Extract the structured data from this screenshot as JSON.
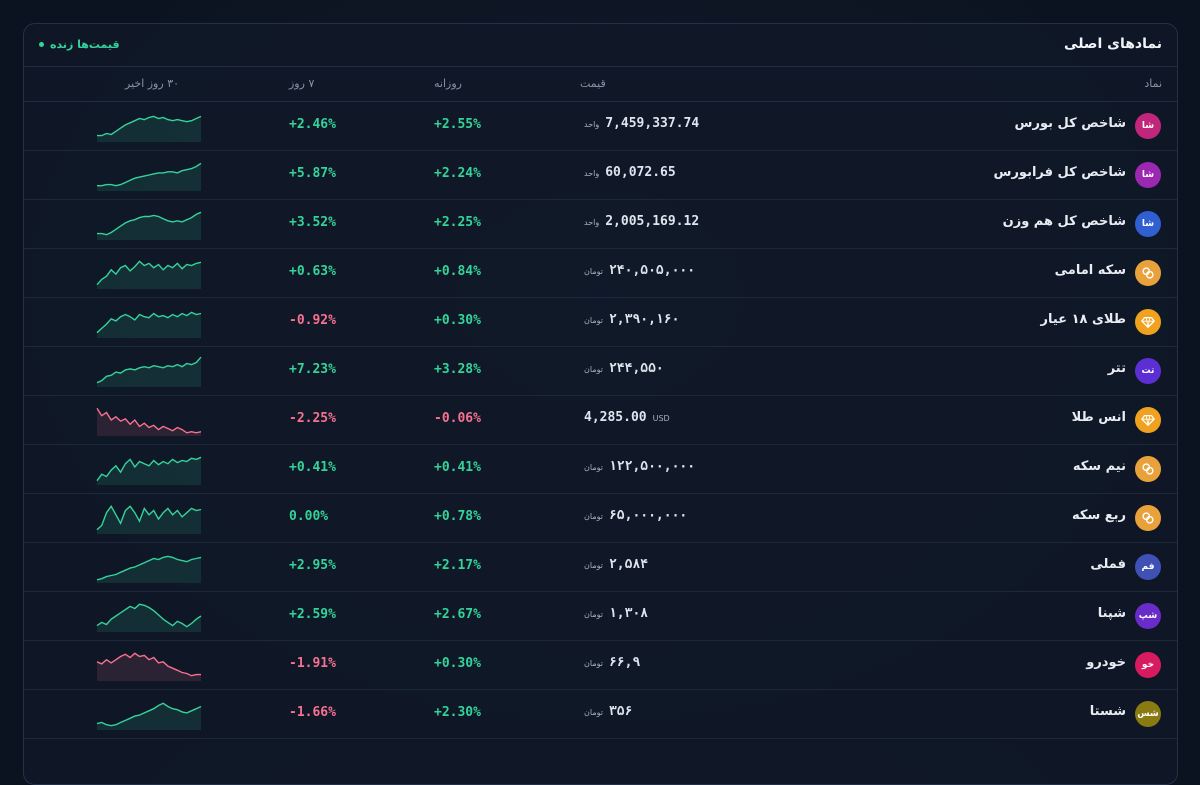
{
  "panel": {
    "title": "نمادهای اصلی",
    "live_label": "قیمت‌ها زنده"
  },
  "columns": {
    "symbol": "نماد",
    "price": "قیمت",
    "daily": "روزانه",
    "weekly": "۷ روز",
    "spark": "۳۰ روز اخیر"
  },
  "colors": {
    "positive": "#34d399",
    "negative": "#f87191"
  },
  "rows": [
    {
      "avatar": "شا",
      "avatar_color": "#c0267a",
      "icon": "text",
      "name": "شاخص کل بورس",
      "price": "7,459,337.74",
      "unit": "واحد",
      "daily": "+2.55%",
      "daily_sign": "pos",
      "weekly": "+2.46%",
      "weekly_sign": "pos",
      "spark": [
        6,
        6,
        8,
        7,
        10,
        13,
        16,
        18,
        20,
        22,
        21,
        23,
        24,
        22,
        23,
        21,
        20,
        21,
        20,
        19,
        20,
        22,
        24
      ],
      "spark_trend": "pos"
    },
    {
      "avatar": "شا",
      "avatar_color": "#9c27b0",
      "icon": "text",
      "name": "شاخص کل فرابورس",
      "price": "60,072.65",
      "unit": "واحد",
      "daily": "+2.24%",
      "daily_sign": "pos",
      "weekly": "+5.87%",
      "weekly_sign": "pos",
      "spark": [
        5,
        5,
        6,
        6,
        5,
        6,
        8,
        10,
        12,
        13,
        14,
        15,
        16,
        17,
        17,
        18,
        18,
        17,
        19,
        20,
        21,
        23,
        26
      ],
      "spark_trend": "pos"
    },
    {
      "avatar": "شا",
      "avatar_color": "#2f5fd0",
      "icon": "text",
      "name": "شاخص کل هم وزن",
      "price": "2,005,169.12",
      "unit": "واحد",
      "daily": "+2.25%",
      "daily_sign": "pos",
      "weekly": "+3.52%",
      "weekly_sign": "pos",
      "spark": [
        6,
        6,
        5,
        7,
        10,
        13,
        16,
        18,
        19,
        21,
        22,
        22,
        23,
        22,
        20,
        18,
        17,
        18,
        17,
        19,
        21,
        24,
        26
      ],
      "spark_trend": "pos"
    },
    {
      "avatar": "",
      "avatar_color": "#e9a23b",
      "icon": "coin",
      "name": "سکه امامی",
      "price": "۲۴۰,۵۰۵,۰۰۰",
      "unit": "تومان",
      "daily": "+0.84%",
      "daily_sign": "pos",
      "weekly": "+0.63%",
      "weekly_sign": "pos",
      "spark": [
        4,
        9,
        12,
        18,
        14,
        20,
        22,
        17,
        21,
        26,
        22,
        24,
        20,
        23,
        18,
        22,
        20,
        24,
        19,
        23,
        22,
        24,
        25
      ],
      "spark_trend": "pos"
    },
    {
      "avatar": "",
      "avatar_color": "#f0a21e",
      "icon": "gem",
      "name": "طلای ۱۸ عیار",
      "price": "۲,۳۹۰,۱۶۰",
      "unit": "تومان",
      "daily": "+0.30%",
      "daily_sign": "pos",
      "weekly": "-0.92%",
      "weekly_sign": "neg",
      "spark": [
        5,
        9,
        13,
        18,
        16,
        20,
        22,
        20,
        17,
        22,
        20,
        19,
        23,
        20,
        21,
        19,
        22,
        20,
        23,
        21,
        24,
        22,
        23
      ],
      "spark_trend": "pos"
    },
    {
      "avatar": "تت",
      "avatar_color": "#5b2fd4",
      "icon": "text",
      "name": "تتر",
      "price": "۲۴۴,۵۵۰",
      "unit": "تومان",
      "daily": "+3.28%",
      "daily_sign": "pos",
      "weekly": "+7.23%",
      "weekly_sign": "pos",
      "spark": [
        4,
        6,
        10,
        11,
        14,
        13,
        16,
        17,
        16,
        18,
        19,
        18,
        20,
        19,
        18,
        20,
        19,
        21,
        19,
        22,
        21,
        23,
        28
      ],
      "spark_trend": "pos"
    },
    {
      "avatar": "",
      "avatar_color": "#f0a21e",
      "icon": "gem",
      "name": "انس طلا",
      "price": "4,285.00",
      "unit": "USD",
      "daily": "-0.06%",
      "daily_sign": "neg",
      "weekly": "-2.25%",
      "weekly_sign": "neg",
      "spark": [
        26,
        19,
        22,
        15,
        18,
        14,
        16,
        11,
        15,
        9,
        12,
        8,
        10,
        6,
        9,
        7,
        5,
        8,
        6,
        3,
        4,
        3,
        4
      ],
      "spark_trend": "neg"
    },
    {
      "avatar": "",
      "avatar_color": "#e9a23b",
      "icon": "coin",
      "name": "نیم سکه",
      "price": "۱۲۲,۵۰۰,۰۰۰",
      "unit": "تومان",
      "daily": "+0.41%",
      "daily_sign": "pos",
      "weekly": "+0.41%",
      "weekly_sign": "pos",
      "spark": [
        4,
        10,
        8,
        14,
        18,
        12,
        20,
        24,
        17,
        22,
        20,
        18,
        23,
        19,
        22,
        20,
        24,
        21,
        23,
        22,
        25,
        24,
        26
      ],
      "spark_trend": "pos"
    },
    {
      "avatar": "",
      "avatar_color": "#e9a23b",
      "icon": "coin",
      "name": "ربع سکه",
      "price": "۶۵,۰۰۰,۰۰۰",
      "unit": "تومان",
      "daily": "+0.78%",
      "daily_sign": "pos",
      "weekly": "0.00%",
      "weekly_sign": "flat",
      "spark": [
        4,
        8,
        20,
        26,
        18,
        10,
        22,
        26,
        20,
        12,
        24,
        18,
        22,
        14,
        20,
        24,
        18,
        22,
        16,
        20,
        24,
        22,
        23
      ],
      "spark_trend": "pos"
    },
    {
      "avatar": "فم",
      "avatar_color": "#3f51b5",
      "icon": "text",
      "name": "فملی",
      "price": "۲,۵۸۴",
      "unit": "تومان",
      "daily": "+2.17%",
      "daily_sign": "pos",
      "weekly": "+2.95%",
      "weekly_sign": "pos",
      "spark": [
        3,
        4,
        6,
        7,
        8,
        10,
        12,
        14,
        15,
        17,
        19,
        21,
        23,
        22,
        24,
        25,
        24,
        22,
        21,
        20,
        22,
        23,
        24
      ],
      "spark_trend": "pos"
    },
    {
      "avatar": "شپ",
      "avatar_color": "#6a2cc9",
      "icon": "text",
      "name": "شپنا",
      "price": "۱,۳۰۸",
      "unit": "تومان",
      "daily": "+2.67%",
      "daily_sign": "pos",
      "weekly": "+2.59%",
      "weekly_sign": "pos",
      "spark": [
        6,
        9,
        7,
        12,
        15,
        18,
        21,
        24,
        22,
        26,
        25,
        23,
        20,
        16,
        12,
        9,
        6,
        10,
        8,
        5,
        8,
        12,
        15
      ],
      "spark_trend": "pos"
    },
    {
      "avatar": "خو",
      "avatar_color": "#d81b60",
      "icon": "text",
      "name": "خودرو",
      "price": "۶۶,۹",
      "unit": "تومان",
      "daily": "+0.30%",
      "daily_sign": "pos",
      "weekly": "-1.91%",
      "weekly_sign": "neg",
      "spark": [
        18,
        16,
        20,
        17,
        20,
        23,
        25,
        22,
        26,
        23,
        24,
        20,
        22,
        17,
        18,
        14,
        12,
        10,
        8,
        7,
        5,
        6,
        6
      ],
      "spark_trend": "neg"
    },
    {
      "avatar": "شس",
      "avatar_color": "#8a7a12",
      "icon": "text",
      "name": "شستا",
      "price": "۳۵۶",
      "unit": "تومان",
      "daily": "+2.30%",
      "daily_sign": "pos",
      "weekly": "-1.66%",
      "weekly_sign": "neg",
      "spark": [
        6,
        7,
        5,
        4,
        5,
        7,
        9,
        11,
        13,
        14,
        16,
        18,
        20,
        23,
        25,
        22,
        20,
        19,
        17,
        16,
        18,
        20,
        22
      ],
      "spark_trend": "pos"
    }
  ]
}
